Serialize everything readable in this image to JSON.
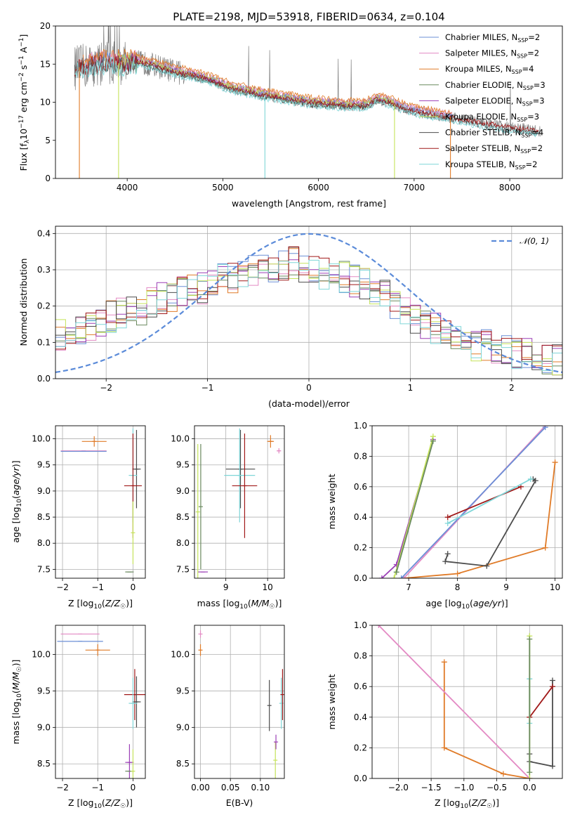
{
  "figure": {
    "title": "PLATE=2198, MJD=53918, FIBERID=0634, z=0.104"
  },
  "colors": {
    "chabrier_miles": "#6b8fd6",
    "salpeter_miles": "#e38ac4",
    "kroupa_miles": "#e07b28",
    "chabrier_elodie": "#6a8a5f",
    "salpeter_elodie": "#9b3fb6",
    "kroupa_elodie": "#c5e35a",
    "chabrier_stelib": "#4d4d4d",
    "salpeter_stelib": "#a01818",
    "kroupa_stelib": "#7fd6d8",
    "data": "#808080",
    "normal": "#5b8bd9"
  },
  "chart_data": [
    {
      "id": "spectrum",
      "type": "line",
      "xlabel": "wavelength [Angstrom, rest frame]",
      "ylabel": "Flux [f_λ 10⁻¹⁷ erg cm⁻² s⁻¹ A⁻¹]",
      "xlim": [
        3250,
        8550
      ],
      "ylim": [
        0,
        20
      ],
      "xticks": [
        4000,
        5000,
        6000,
        7000,
        8000
      ],
      "yticks": [
        0,
        5,
        10,
        15,
        20
      ],
      "grid": false,
      "legend": "top-right",
      "legend_entries": [
        {
          "name": "Chabrier MILES, N",
          "sub": "SSP",
          "tail": "=2",
          "color_key": "chabrier_miles"
        },
        {
          "name": "Salpeter MILES, N",
          "sub": "SSP",
          "tail": "=2",
          "color_key": "salpeter_miles"
        },
        {
          "name": "Kroupa MILES, N",
          "sub": "SSP",
          "tail": "=4",
          "color_key": "kroupa_miles"
        },
        {
          "name": "Chabrier ELODIE, N",
          "sub": "SSP",
          "tail": "=3",
          "color_key": "chabrier_elodie"
        },
        {
          "name": "Salpeter ELODIE, N",
          "sub": "SSP",
          "tail": "=3",
          "color_key": "salpeter_elodie"
        },
        {
          "name": "Kroupa ELODIE, N",
          "sub": "SSP",
          "tail": "=3",
          "color_key": "kroupa_elodie"
        },
        {
          "name": "Chabrier STELIB, N",
          "sub": "SSP",
          "tail": "=4",
          "color_key": "chabrier_stelib"
        },
        {
          "name": "Salpeter STELIB, N",
          "sub": "SSP",
          "tail": "=2",
          "color_key": "salpeter_stelib"
        },
        {
          "name": "Kroupa STELIB, N",
          "sub": "SSP",
          "tail": "=2",
          "color_key": "kroupa_stelib"
        }
      ],
      "continuum": {
        "x": [
          3450,
          3600,
          3800,
          3950,
          4100,
          4300,
          4500,
          4700,
          4900,
          5100,
          5300,
          5500,
          5700,
          5900,
          6100,
          6300,
          6500,
          6600,
          6700,
          6900,
          7100,
          7400,
          7700,
          8000,
          8300
        ],
        "y": [
          14.5,
          14.8,
          15.4,
          15.0,
          15.3,
          14.8,
          14.0,
          13.5,
          12.8,
          11.8,
          11.3,
          10.8,
          10.4,
          10.0,
          9.8,
          9.6,
          9.6,
          10.4,
          10.2,
          9.2,
          8.6,
          8.0,
          7.3,
          6.7,
          6.2
        ]
      },
      "model_offsets": {
        "chabrier_miles": 0.3,
        "salpeter_miles": 0.45,
        "kroupa_miles": 0.7,
        "chabrier_elodie": -0.2,
        "salpeter_elodie": 0.1,
        "kroupa_elodie": 0.2,
        "chabrier_stelib": -0.3,
        "salpeter_stelib": 0.0,
        "kroupa_stelib": -0.5
      },
      "model_ranges": {
        "chabrier_miles": [
          3540,
          7400
        ],
        "salpeter_miles": [
          3540,
          7400
        ],
        "kroupa_miles": [
          3540,
          7400
        ],
        "chabrier_elodie": [
          3900,
          6800
        ],
        "salpeter_elodie": [
          3900,
          6800
        ],
        "kroupa_elodie": [
          3900,
          6800
        ],
        "chabrier_stelib": [
          3450,
          8300
        ],
        "salpeter_stelib": [
          3450,
          8300
        ],
        "kroupa_stelib": [
          3450,
          8300
        ]
      },
      "absorption_drops": [
        {
          "x": 3500,
          "color_key": "kroupa_miles"
        },
        {
          "x": 3910,
          "color_key": "kroupa_elodie"
        },
        {
          "x": 5440,
          "color_key": "kroupa_stelib"
        },
        {
          "x": 6795,
          "color_key": "kroupa_elodie"
        },
        {
          "x": 7380,
          "color_key": "kroupa_miles"
        }
      ]
    },
    {
      "id": "residuals",
      "type": "line",
      "xlabel": "(data-model)/error",
      "ylabel": "Normed distribution",
      "xlim": [
        -2.5,
        2.5
      ],
      "ylim": [
        0,
        0.42
      ],
      "xticks": [
        -2,
        -1,
        0,
        1,
        2
      ],
      "yticks": [
        0.0,
        0.1,
        0.2,
        0.3,
        0.4
      ],
      "grid": true,
      "legend": "top-right",
      "legend_entries": [
        {
          "name": "𝒩(0, 1)",
          "color_key": "normal",
          "dashed": true
        }
      ],
      "histogram": {
        "bin_width": 0.1,
        "bin_start": -2.5,
        "base": [
          0.12,
          0.13,
          0.13,
          0.14,
          0.15,
          0.17,
          0.18,
          0.2,
          0.19,
          0.21,
          0.22,
          0.23,
          0.24,
          0.26,
          0.25,
          0.27,
          0.28,
          0.28,
          0.29,
          0.3,
          0.3,
          0.31,
          0.31,
          0.32,
          0.31,
          0.3,
          0.29,
          0.3,
          0.28,
          0.27,
          0.26,
          0.25,
          0.23,
          0.21,
          0.19,
          0.17,
          0.15,
          0.14,
          0.12,
          0.11,
          0.1,
          0.09,
          0.09,
          0.08,
          0.08,
          0.07,
          0.07,
          0.06,
          0.05,
          0.05
        ],
        "noise_amp": 0.045
      }
    },
    {
      "id": "z_age",
      "type": "scatter",
      "xlabel": "Z [log₁₀(Z/Z☉)]",
      "ylabel": "age  [log₁₀(age/yr)]",
      "xlim": [
        -2.2,
        0.35
      ],
      "ylim": [
        7.33,
        10.25
      ],
      "xticks": [
        -2,
        -1,
        0
      ],
      "yticks": [
        7.5,
        8.0,
        8.5,
        9.0,
        9.5,
        10.0
      ],
      "grid": true,
      "errorbars": [
        {
          "x": -1.1,
          "y": 9.95,
          "ex": 0.35,
          "ey": 0.1,
          "color_key": "kroupa_miles"
        },
        {
          "x": -1.4,
          "y": 9.77,
          "ex": 0.65,
          "ey": 0.0,
          "color_key": "salpeter_miles"
        },
        {
          "x": -1.4,
          "y": 9.76,
          "ex": 0.65,
          "ey": 0.0,
          "color_key": "chabrier_miles"
        },
        {
          "x": 0.1,
          "y": 9.42,
          "ex": 0.12,
          "ey": 0.75,
          "color_key": "chabrier_stelib"
        },
        {
          "x": 0.0,
          "y": 9.3,
          "ex": 0.12,
          "ey": 0.9,
          "color_key": "kroupa_stelib"
        },
        {
          "x": 0.0,
          "y": 9.1,
          "ex": 0.25,
          "ey": 1.0,
          "color_key": "salpeter_stelib"
        },
        {
          "x": -0.1,
          "y": 7.45,
          "ex": 0.12,
          "ey": 0.0,
          "color_key": "chabrier_elodie"
        },
        {
          "x": 0.0,
          "y": 8.2,
          "ex": 0.0,
          "ey": 0.6,
          "color_key": "kroupa_elodie"
        }
      ]
    },
    {
      "id": "mass_age",
      "type": "scatter",
      "xlabel": "mass [log₁₀(M/M☉)]",
      "ylabel": "",
      "xlim": [
        8.25,
        10.4
      ],
      "ylim": [
        7.33,
        10.25
      ],
      "xticks": [
        9,
        10
      ],
      "yticks": [
        7.5,
        8.0,
        8.5,
        9.0,
        9.5,
        10.0
      ],
      "grid": true,
      "errorbars": [
        {
          "x": 10.07,
          "y": 9.95,
          "ex": 0.08,
          "ey": 0.12,
          "color_key": "kroupa_miles"
        },
        {
          "x": 10.27,
          "y": 9.77,
          "ex": 0.05,
          "ey": 0.05,
          "color_key": "salpeter_miles"
        },
        {
          "x": 9.35,
          "y": 9.42,
          "ex": 0.35,
          "ey": 0.75,
          "color_key": "chabrier_stelib"
        },
        {
          "x": 9.33,
          "y": 9.3,
          "ex": 0.37,
          "ey": 0.9,
          "color_key": "kroupa_stelib"
        },
        {
          "x": 9.45,
          "y": 9.1,
          "ex": 0.3,
          "ey": 1.0,
          "color_key": "salpeter_stelib"
        },
        {
          "x": 8.45,
          "y": 7.45,
          "ex": 0.12,
          "ey": 0.0,
          "color_key": "salpeter_elodie"
        },
        {
          "x": 8.33,
          "y": 8.6,
          "ex": 0.0,
          "ey": 1.3,
          "color_key": "kroupa_elodie"
        },
        {
          "x": 8.4,
          "y": 8.7,
          "ex": 0.0,
          "ey": 1.2,
          "color_key": "chabrier_elodie"
        }
      ]
    },
    {
      "id": "age_weight",
      "type": "line",
      "xlabel": "age  [log₁₀(age/yr)]",
      "ylabel": "mass weight",
      "xlim": [
        6.25,
        10.15
      ],
      "ylim": [
        0,
        1
      ],
      "xticks": [
        7,
        8,
        9,
        10
      ],
      "yticks": [
        0.0,
        0.2,
        0.4,
        0.6,
        0.8,
        1.0
      ],
      "grid": true,
      "series": [
        {
          "color_key": "kroupa_miles",
          "x": [
            6.9,
            8.0,
            9.8,
            10.0
          ],
          "y": [
            0.0,
            0.03,
            0.2,
            0.76
          ]
        },
        {
          "color_key": "salpeter_miles",
          "x": [
            6.9,
            9.8
          ],
          "y": [
            0.0,
            1.0
          ]
        },
        {
          "color_key": "chabrier_miles",
          "x": [
            6.85,
            9.8
          ],
          "y": [
            0.0,
            0.99
          ]
        },
        {
          "color_key": "chabrier_stelib",
          "x": [
            7.8,
            7.75,
            8.6,
            9.6,
            9.55
          ],
          "y": [
            0.16,
            0.11,
            0.08,
            0.64,
            0.65
          ]
        },
        {
          "color_key": "salpeter_stelib",
          "x": [
            7.8,
            9.3
          ],
          "y": [
            0.4,
            0.6
          ]
        },
        {
          "color_key": "kroupa_stelib",
          "x": [
            7.8,
            9.5
          ],
          "y": [
            0.36,
            0.65
          ]
        },
        {
          "color_key": "salpeter_elodie",
          "x": [
            6.45,
            6.75,
            7.5
          ],
          "y": [
            0.0,
            0.09,
            0.91
          ]
        },
        {
          "color_key": "kroupa_elodie",
          "x": [
            6.7,
            7.5
          ],
          "y": [
            0.0,
            0.93
          ]
        },
        {
          "color_key": "chabrier_elodie",
          "x": [
            6.75,
            7.5
          ],
          "y": [
            0.04,
            0.9
          ]
        }
      ]
    },
    {
      "id": "z_mass",
      "type": "scatter",
      "xlabel": "Z [log₁₀(Z/Z☉)]",
      "ylabel": "mass [log₁₀(M/M☉)]",
      "xlim": [
        -2.2,
        0.35
      ],
      "ylim": [
        8.3,
        10.4
      ],
      "xticks": [
        -2,
        -1,
        0
      ],
      "yticks": [
        8.5,
        9.0,
        9.5,
        10.0
      ],
      "grid": true,
      "errorbars": [
        {
          "x": -1.5,
          "y": 10.28,
          "ex": 0.55,
          "ey": 0.0,
          "color_key": "salpeter_miles"
        },
        {
          "x": -1.5,
          "y": 10.18,
          "ex": 0.65,
          "ey": 0.0,
          "color_key": "chabrier_miles"
        },
        {
          "x": -1.0,
          "y": 10.06,
          "ex": 0.35,
          "ey": 0.08,
          "color_key": "kroupa_miles"
        },
        {
          "x": 0.05,
          "y": 9.45,
          "ex": 0.3,
          "ey": 0.35,
          "color_key": "salpeter_stelib"
        },
        {
          "x": 0.1,
          "y": 9.35,
          "ex": 0.12,
          "ey": 0.35,
          "color_key": "chabrier_stelib"
        },
        {
          "x": 0.0,
          "y": 9.33,
          "ex": 0.12,
          "ey": 0.35,
          "color_key": "kroupa_stelib"
        },
        {
          "x": -0.1,
          "y": 8.52,
          "ex": 0.12,
          "ey": 0.25,
          "color_key": "salpeter_elodie"
        },
        {
          "x": -0.1,
          "y": 8.4,
          "ex": 0.12,
          "ey": 0.0,
          "color_key": "chabrier_elodie"
        },
        {
          "x": 0.0,
          "y": 8.4,
          "ex": 0.0,
          "ey": 0.3,
          "color_key": "kroupa_elodie"
        }
      ]
    },
    {
      "id": "ebv_mass",
      "type": "scatter",
      "xlabel": "E(B-V)",
      "ylabel": "",
      "xlim": [
        -0.01,
        0.14
      ],
      "ylim": [
        8.3,
        10.4
      ],
      "xticks": [
        0.0,
        0.05,
        0.1
      ],
      "xtick_labels": [
        "0.00",
        "0.05",
        "0.10"
      ],
      "yticks": [
        8.5,
        9.0,
        9.5,
        10.0
      ],
      "grid": true,
      "errorbars": [
        {
          "x": 0.0,
          "y": 10.28,
          "ex": 0.0,
          "ey": 0.05,
          "color_key": "salpeter_miles"
        },
        {
          "x": 0.0,
          "y": 10.06,
          "ex": 0.0,
          "ey": 0.08,
          "color_key": "kroupa_miles"
        },
        {
          "x": 0.115,
          "y": 9.3,
          "ex": 0.0,
          "ey": 0.35,
          "color_key": "chabrier_stelib"
        },
        {
          "x": 0.125,
          "y": 8.55,
          "ex": 0.0,
          "ey": 0.25,
          "color_key": "kroupa_elodie"
        },
        {
          "x": 0.126,
          "y": 8.8,
          "ex": 0.0,
          "ey": 0.1,
          "color_key": "salpeter_elodie"
        },
        {
          "x": 0.135,
          "y": 9.33,
          "ex": 0.0,
          "ey": 0.35,
          "color_key": "kroupa_stelib"
        },
        {
          "x": 0.137,
          "y": 9.45,
          "ex": 0.0,
          "ey": 0.35,
          "color_key": "salpeter_stelib"
        }
      ]
    },
    {
      "id": "z_weight",
      "type": "line",
      "xlabel": "Z [log₁₀(Z/Z☉)]",
      "ylabel": "mass weight",
      "xlim": [
        -2.4,
        0.5
      ],
      "ylim": [
        0,
        1
      ],
      "xticks": [
        -2.0,
        -1.5,
        -1.0,
        -0.5,
        0.0
      ],
      "xtick_labels": [
        "−2.0",
        "−1.5",
        "−1.0",
        "−0.5",
        "0.0"
      ],
      "yticks": [
        0.0,
        0.2,
        0.4,
        0.6,
        0.8,
        1.0
      ],
      "grid": true,
      "series": [
        {
          "color_key": "kroupa_miles",
          "x": [
            -1.3,
            -1.3,
            -0.4,
            0.0
          ],
          "y": [
            0.76,
            0.2,
            0.03,
            0.0
          ]
        },
        {
          "color_key": "salpeter_miles",
          "x": [
            -2.3,
            0.0
          ],
          "y": [
            1.0,
            0.0
          ]
        },
        {
          "color_key": "chabrier_stelib",
          "x": [
            0.0,
            0.0,
            0.35,
            0.35
          ],
          "y": [
            0.16,
            0.11,
            0.08,
            0.64
          ]
        },
        {
          "color_key": "salpeter_stelib",
          "x": [
            0.0,
            0.35
          ],
          "y": [
            0.4,
            0.6
          ]
        },
        {
          "color_key": "kroupa_stelib",
          "x": [
            0.0,
            0.0
          ],
          "y": [
            0.36,
            0.65
          ]
        },
        {
          "color_key": "kroupa_elodie",
          "x": [
            0.0,
            0.0
          ],
          "y": [
            0.0,
            0.93
          ]
        },
        {
          "color_key": "chabrier_elodie",
          "x": [
            0.0,
            0.0
          ],
          "y": [
            0.04,
            0.91
          ]
        }
      ]
    }
  ]
}
